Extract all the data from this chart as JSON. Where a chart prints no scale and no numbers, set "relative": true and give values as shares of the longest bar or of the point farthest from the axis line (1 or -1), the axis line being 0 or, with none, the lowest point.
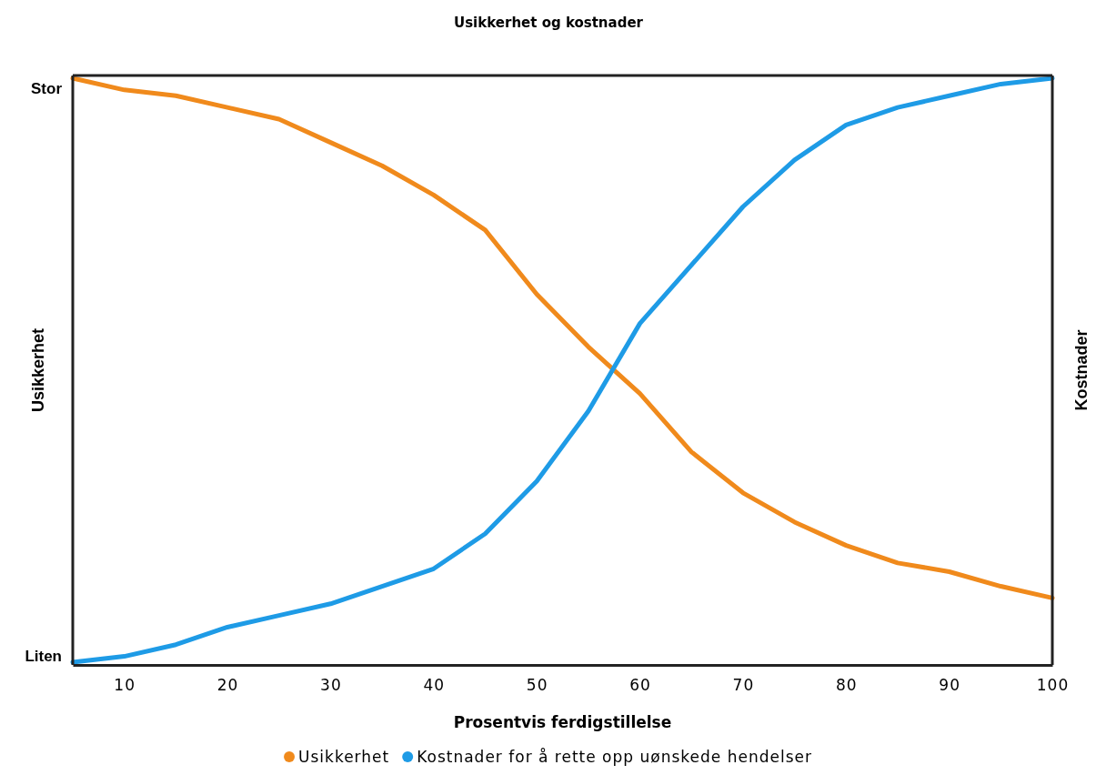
{
  "chart_data": {
    "type": "line",
    "title": "Usikkerhet og kostnader",
    "xlabel": "Prosentvis ferdigstillelse",
    "ylabel": "Usikkerhet",
    "y2label": "Kostnader",
    "x": [
      5,
      10,
      15,
      20,
      25,
      30,
      35,
      40,
      45,
      50,
      55,
      60,
      65,
      70,
      75,
      80,
      85,
      90,
      95,
      100
    ],
    "xlim": [
      5,
      100
    ],
    "xticks": [
      10,
      20,
      30,
      40,
      50,
      60,
      70,
      80,
      90,
      100
    ],
    "relative": true,
    "annotations": [
      "Stor",
      "Liten"
    ],
    "series": [
      {
        "name": "Usikkerhet",
        "color": "#f08a1c",
        "values": [
          1.0,
          0.98,
          0.97,
          0.95,
          0.93,
          0.89,
          0.85,
          0.8,
          0.74,
          0.63,
          0.54,
          0.46,
          0.36,
          0.29,
          0.24,
          0.2,
          0.17,
          0.155,
          0.13,
          0.11
        ]
      },
      {
        "name": "Kostnader for å rette opp uønskede hendelser",
        "color": "#1e9be6",
        "values": [
          0.0,
          0.01,
          0.03,
          0.06,
          0.08,
          0.1,
          0.13,
          0.16,
          0.22,
          0.31,
          0.43,
          0.58,
          0.68,
          0.78,
          0.86,
          0.92,
          0.95,
          0.97,
          0.99,
          1.0
        ]
      }
    ],
    "legend": "bottom",
    "marker": "none",
    "line_style": "solid",
    "grid": false
  }
}
